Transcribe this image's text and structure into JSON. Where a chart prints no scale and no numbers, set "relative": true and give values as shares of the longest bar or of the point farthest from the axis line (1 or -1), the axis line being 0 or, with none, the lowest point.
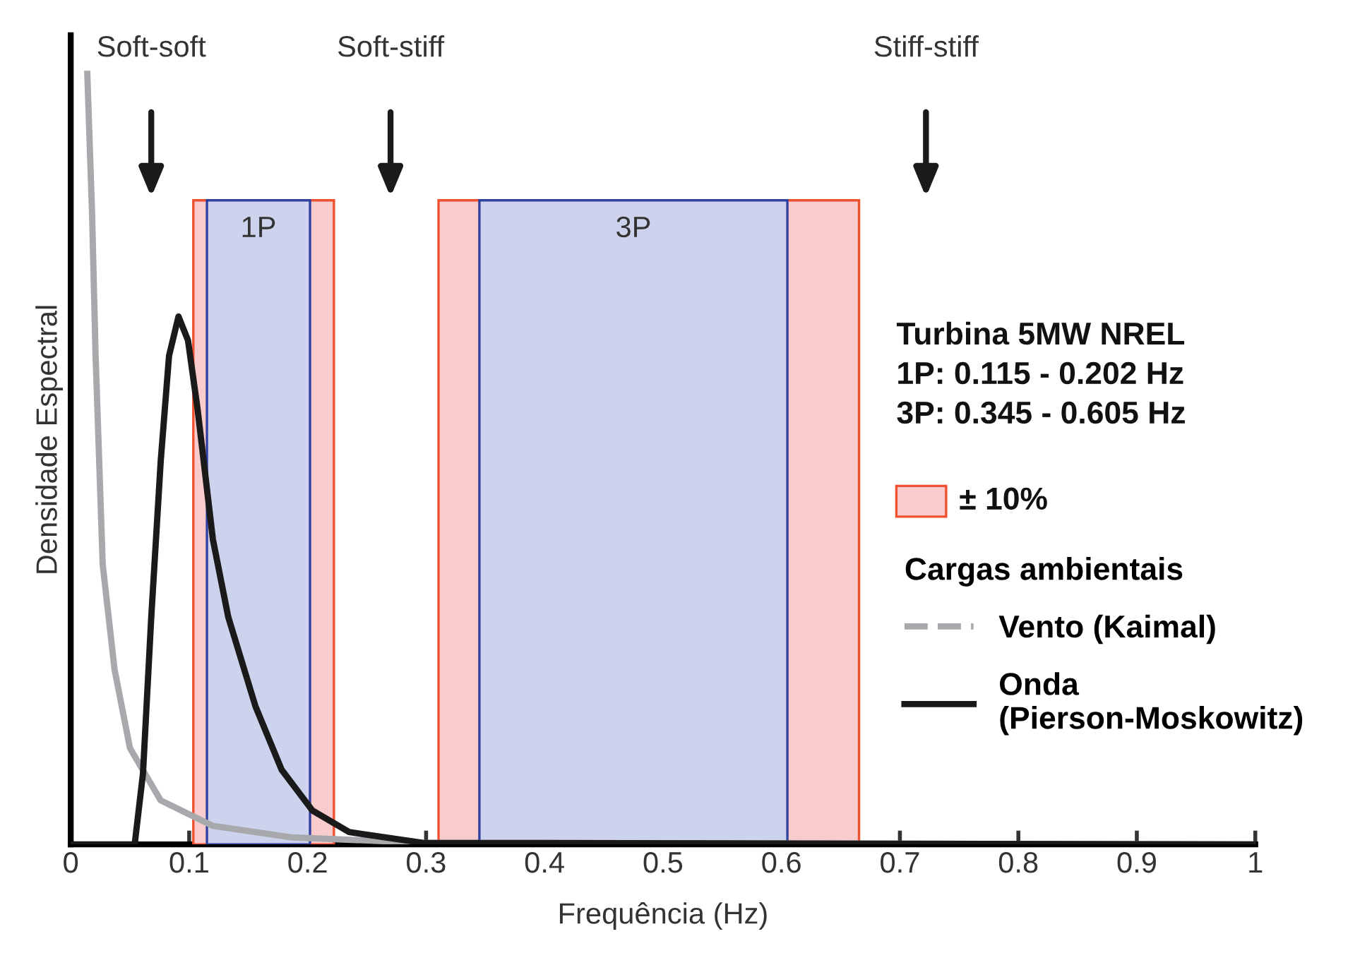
{
  "chart_data": {
    "type": "line",
    "relative": true,
    "xlabel": "Frequência (Hz)",
    "ylabel": "Densidade Espectral",
    "xlim": [
      0,
      1
    ],
    "xticks": [
      0,
      0.1,
      0.2,
      0.3,
      0.4,
      0.5,
      0.6,
      0.7,
      0.8,
      0.9,
      1
    ],
    "grid": false,
    "legend": "right",
    "legend_title": "Cargas ambientais",
    "marker": "none",
    "line_style": "solid",
    "series": [
      {
        "name": "Vento (Kaimal)",
        "color": "#a7a9ac",
        "x": [
          0.014,
          0.018,
          0.021,
          0.027,
          0.037,
          0.05,
          0.076,
          0.12,
          0.187,
          0.298,
          1.0
        ],
        "values": [
          1.0,
          0.82,
          0.634,
          0.363,
          0.227,
          0.125,
          0.057,
          0.024,
          0.009,
          0.002,
          0
        ]
      },
      {
        "name": "Onda\n(Pierson-Moskowitz)",
        "color": "#1a1a1a",
        "x": [
          0.002,
          0.054,
          0.061,
          0.068,
          0.076,
          0.083,
          0.091,
          0.099,
          0.107,
          0.12,
          0.133,
          0.156,
          0.178,
          0.204,
          0.235,
          0.297,
          1.0
        ],
        "values": [
          0,
          0,
          0.092,
          0.295,
          0.498,
          0.634,
          0.685,
          0.654,
          0.566,
          0.396,
          0.295,
          0.179,
          0.097,
          0.044,
          0.016,
          0.002,
          0
        ]
      }
    ],
    "bands": [
      {
        "axis": "x",
        "from": 0.1035,
        "to": 0.2222,
        "color": "#f8cccc"
      },
      {
        "axis": "x",
        "from": 0.3105,
        "to": 0.6655,
        "color": "#f8cccc"
      },
      {
        "axis": "x",
        "from": 0.115,
        "to": 0.202,
        "label": "1P",
        "color": "#cdd3ec"
      },
      {
        "axis": "x",
        "from": 0.345,
        "to": 0.605,
        "label": "3P",
        "color": "#cdd3ec"
      }
    ],
    "annotations": [
      "Soft-soft",
      "Soft-stiff",
      "Stiff-stiff",
      "Turbina 5MW NREL\n1P: 0.115 - 0.202 Hz\n3P: 0.345 - 0.605 Hz",
      "± 10%"
    ]
  }
}
